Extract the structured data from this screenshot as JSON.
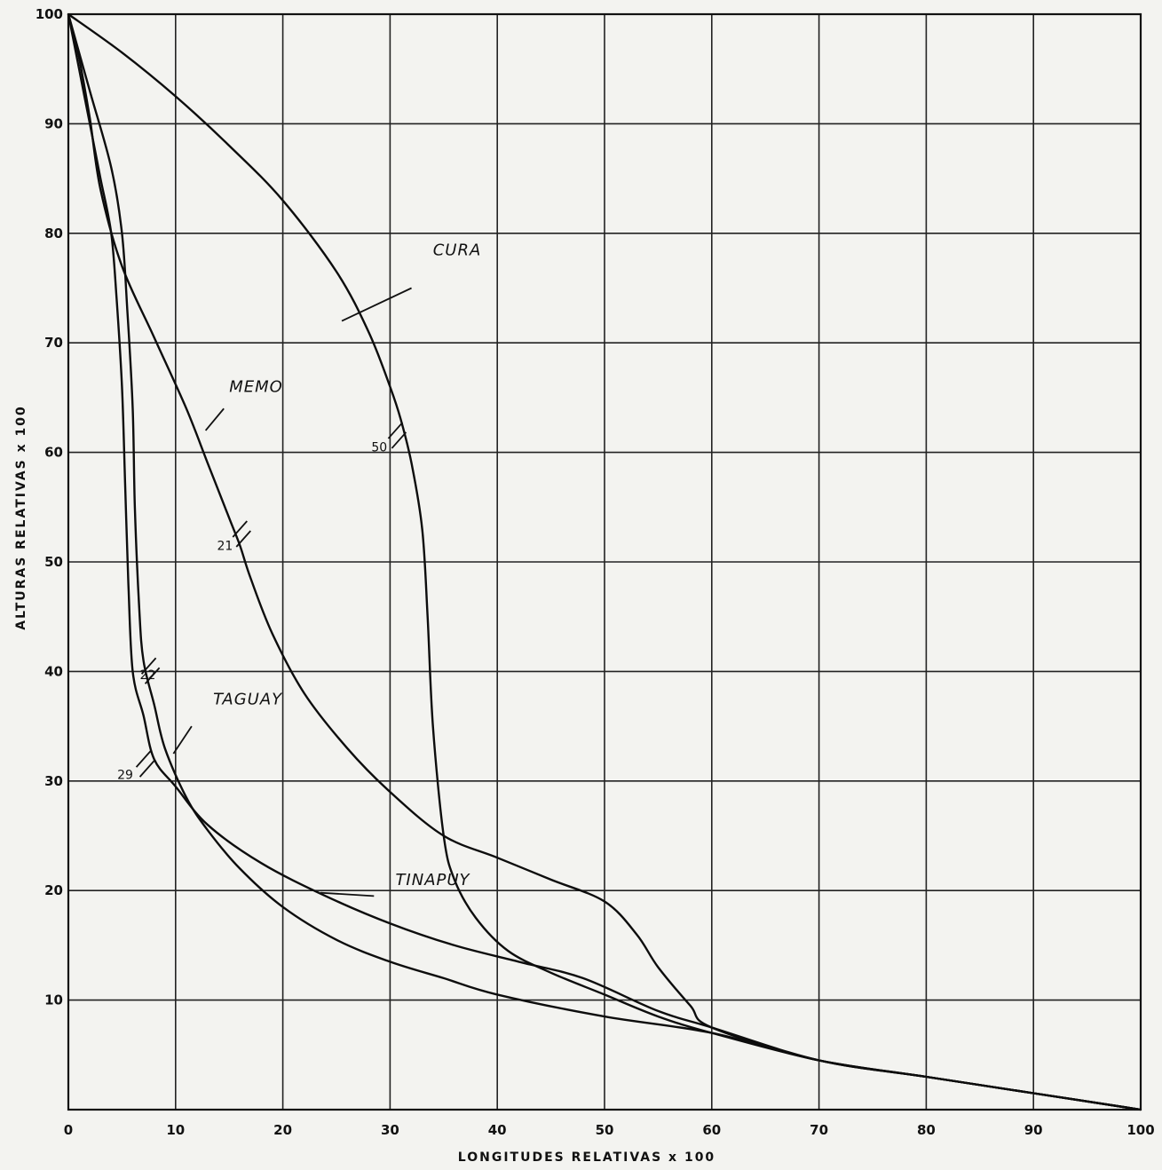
{
  "chart_data": {
    "type": "line",
    "title": "",
    "xlabel": "LONGITUDES  RELATIVAS x 100",
    "ylabel": "ALTURAS  RELATIVAS x 100",
    "xlim": [
      0,
      100
    ],
    "ylim": [
      0,
      100
    ],
    "grid": true,
    "xticks": [
      0,
      10,
      20,
      30,
      40,
      50,
      60,
      70,
      80,
      90,
      100
    ],
    "yticks": [
      10,
      20,
      30,
      40,
      50,
      60,
      70,
      80,
      90,
      100
    ],
    "series": [
      {
        "name": "CURA",
        "x": [
          0,
          5,
          10,
          15,
          20,
          25,
          28,
          30,
          31,
          32,
          33,
          33.5,
          34,
          35,
          36,
          38,
          41,
          45,
          50,
          55,
          60,
          70,
          80,
          90,
          100
        ],
        "y": [
          100,
          96.5,
          92.5,
          88,
          83,
          76.5,
          71,
          66,
          63,
          59,
          53,
          45,
          35,
          25,
          21,
          17.5,
          14.5,
          12.5,
          10.5,
          8.5,
          7,
          4.5,
          3,
          1.5,
          0
        ],
        "label_at": [
          34,
          78
        ],
        "pointer": [
          [
            32,
            75
          ],
          [
            25.5,
            72
          ]
        ]
      },
      {
        "name": "MEMO",
        "x": [
          0,
          1,
          2,
          3,
          5,
          8,
          11,
          13,
          15,
          16,
          17,
          19,
          22,
          26,
          30,
          35,
          40,
          45,
          50,
          53,
          55,
          58,
          60,
          70,
          80,
          90,
          100
        ],
        "y": [
          100,
          96,
          90.5,
          84,
          77,
          70.5,
          64,
          59,
          54,
          51.5,
          48.5,
          43.5,
          38,
          33,
          29,
          25,
          23,
          21,
          19,
          16,
          13,
          9.5,
          7.5,
          4.5,
          3,
          1.5,
          0
        ],
        "label_at": [
          15,
          65.5
        ],
        "pointer": [
          [
            14.5,
            64
          ],
          [
            12.8,
            62
          ]
        ]
      },
      {
        "name": "TAGUAY",
        "x": [
          0,
          2,
          4,
          5,
          5.5,
          6,
          6.2,
          6.6,
          7,
          8,
          9,
          11,
          13,
          16,
          20,
          25,
          30,
          35,
          40,
          50,
          60,
          70,
          80,
          90,
          100
        ],
        "y": [
          100,
          93,
          86,
          80,
          73,
          64,
          55,
          46,
          41,
          37,
          33,
          28.5,
          25.5,
          22,
          18.5,
          15.5,
          13.5,
          12,
          10.5,
          8.5,
          7,
          4.5,
          3,
          1.5,
          0
        ],
        "label_at": [
          13.5,
          37
        ],
        "pointer": [
          [
            11.5,
            35
          ],
          [
            9.8,
            32.5
          ]
        ]
      },
      {
        "name": "TINAPUY",
        "x": [
          0,
          1,
          2,
          3,
          4,
          4.5,
          5,
          5.3,
          5.6,
          6,
          7,
          8,
          10,
          13,
          18,
          24,
          30,
          36,
          42,
          48,
          55,
          60,
          70,
          80,
          90,
          100
        ],
        "y": [
          100,
          95,
          90,
          85,
          80,
          74,
          66,
          57,
          48,
          40,
          36,
          32,
          29.5,
          26,
          22.5,
          19.5,
          17,
          15,
          13.5,
          12,
          9,
          7.5,
          4.5,
          3,
          1.5,
          0
        ],
        "label_at": [
          30.5,
          20.5
        ],
        "pointer": [
          [
            28.5,
            19.5
          ],
          [
            23.5,
            19.8
          ]
        ]
      }
    ],
    "annotations": [
      {
        "text": "50",
        "x": 29,
        "y": 60.5,
        "mark_x": 30.5,
        "mark_y": 62
      },
      {
        "text": "21",
        "x": 14.6,
        "y": 51.5,
        "mark_x": 16,
        "mark_y": 53
      },
      {
        "text": "22",
        "x": 7.4,
        "y": 39.7,
        "mark_x": 7.5,
        "mark_y": 40.5
      },
      {
        "text": "29",
        "x": 5.3,
        "y": 30.6,
        "mark_x": 7,
        "mark_y": 32
      }
    ]
  }
}
